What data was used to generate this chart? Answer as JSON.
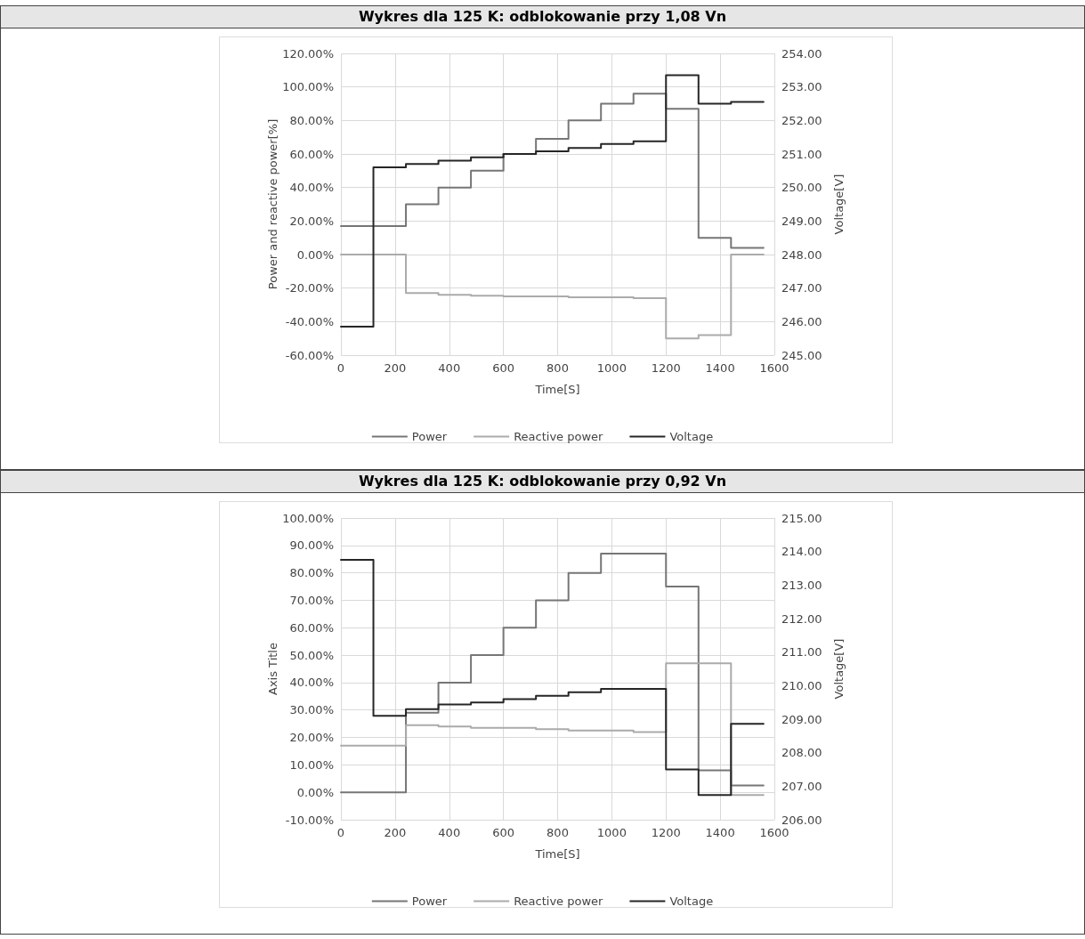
{
  "chart_data": [
    {
      "type": "step",
      "title": "Wykres dla 125 K: odblokowanie przy 1,08 Vn",
      "xlabel": "Time[S]",
      "ylabel": "Power and reactive power[%]",
      "y2label": "Voltage[V]",
      "x": [
        0,
        120,
        240,
        360,
        480,
        600,
        720,
        840,
        960,
        1080,
        1200,
        1320,
        1440,
        1560
      ],
      "series": [
        {
          "name": "Power",
          "color": "#767676",
          "values": [
            17,
            17,
            30,
            40,
            50,
            60,
            69,
            80,
            90,
            96,
            87,
            10,
            4,
            4
          ]
        },
        {
          "name": "Reactive power",
          "color": "#ababab",
          "values": [
            0,
            0,
            -23,
            -24,
            -24.5,
            -25,
            -25,
            -25.5,
            -25.5,
            -26,
            -50,
            -48,
            0,
            0
          ]
        },
        {
          "name": "Voltage",
          "color": "#262626",
          "axis": "y2",
          "values": [
            245.85,
            250.6,
            250.7,
            250.8,
            250.9,
            251.0,
            251.08,
            251.18,
            251.3,
            251.38,
            253.35,
            252.5,
            252.55,
            252.55
          ]
        }
      ],
      "xlim": [
        0,
        1600
      ],
      "xticks": [
        0,
        200,
        400,
        600,
        800,
        1000,
        1200,
        1400,
        1600
      ],
      "ylim": [
        -60,
        120
      ],
      "yticks": [
        {
          "value": -60,
          "label": "-60.00%"
        },
        {
          "value": -40,
          "label": "-40.00%"
        },
        {
          "value": -20,
          "label": "-20.00%"
        },
        {
          "value": 0,
          "label": "0.00%"
        },
        {
          "value": 20,
          "label": "20.00%"
        },
        {
          "value": 40,
          "label": "40.00%"
        },
        {
          "value": 60,
          "label": "60.00%"
        },
        {
          "value": 80,
          "label": "80.00%"
        },
        {
          "value": 100,
          "label": "100.00%"
        },
        {
          "value": 120,
          "label": "120.00%"
        }
      ],
      "y2lim": [
        245,
        254
      ],
      "y2ticks": [
        {
          "value": 245,
          "label": "245.00"
        },
        {
          "value": 246,
          "label": "246.00"
        },
        {
          "value": 247,
          "label": "247.00"
        },
        {
          "value": 248,
          "label": "248.00"
        },
        {
          "value": 249,
          "label": "249.00"
        },
        {
          "value": 250,
          "label": "250.00"
        },
        {
          "value": 251,
          "label": "251.00"
        },
        {
          "value": 252,
          "label": "252.00"
        },
        {
          "value": 253,
          "label": "253.00"
        },
        {
          "value": 254,
          "label": "254.00"
        }
      ],
      "grid": true,
      "legend": "bottom",
      "marker": "none",
      "line_style": "solid"
    },
    {
      "type": "step",
      "title": "Wykres dla 125 K: odblokowanie przy 0,92 Vn",
      "xlabel": "Time[S]",
      "ylabel": "Axis Title",
      "y2label": "Voltage[V]",
      "x": [
        0,
        120,
        240,
        360,
        480,
        600,
        720,
        840,
        960,
        1080,
        1200,
        1320,
        1440,
        1560
      ],
      "series": [
        {
          "name": "Power",
          "color": "#767676",
          "values": [
            0,
            0,
            29,
            40,
            50,
            60,
            70,
            80,
            87,
            87,
            75,
            8,
            2.5,
            2.5
          ]
        },
        {
          "name": "Reactive power",
          "color": "#ababab",
          "values": [
            17,
            17,
            24.5,
            24,
            23.5,
            23.5,
            23,
            22.5,
            22.5,
            22,
            47,
            47,
            -1,
            -1
          ]
        },
        {
          "name": "Voltage",
          "color": "#262626",
          "axis": "y2",
          "values": [
            213.75,
            209.1,
            209.3,
            209.44,
            209.5,
            209.6,
            209.7,
            209.8,
            209.9,
            209.9,
            207.5,
            206.74,
            208.86,
            208.86
          ]
        }
      ],
      "xlim": [
        0,
        1600
      ],
      "xticks": [
        0,
        200,
        400,
        600,
        800,
        1000,
        1200,
        1400,
        1600
      ],
      "ylim": [
        -10,
        100
      ],
      "yticks": [
        {
          "value": -10,
          "label": "-10.00%"
        },
        {
          "value": 0,
          "label": "0.00%"
        },
        {
          "value": 10,
          "label": "10.00%"
        },
        {
          "value": 20,
          "label": "20.00%"
        },
        {
          "value": 30,
          "label": "30.00%"
        },
        {
          "value": 40,
          "label": "40.00%"
        },
        {
          "value": 50,
          "label": "50.00%"
        },
        {
          "value": 60,
          "label": "60.00%"
        },
        {
          "value": 70,
          "label": "70.00%"
        },
        {
          "value": 80,
          "label": "80.00%"
        },
        {
          "value": 90,
          "label": "90.00%"
        },
        {
          "value": 100,
          "label": "100.00%"
        }
      ],
      "y2lim": [
        206,
        215
      ],
      "y2ticks": [
        {
          "value": 206,
          "label": "206.00"
        },
        {
          "value": 207,
          "label": "207.00"
        },
        {
          "value": 208,
          "label": "208.00"
        },
        {
          "value": 209,
          "label": "209.00"
        },
        {
          "value": 210,
          "label": "210.00"
        },
        {
          "value": 211,
          "label": "211.00"
        },
        {
          "value": 212,
          "label": "212.00"
        },
        {
          "value": 213,
          "label": "213.00"
        },
        {
          "value": 214,
          "label": "214.00"
        },
        {
          "value": 215,
          "label": "215.00"
        }
      ],
      "grid": true,
      "legend": "bottom",
      "marker": "none",
      "line_style": "solid"
    }
  ]
}
